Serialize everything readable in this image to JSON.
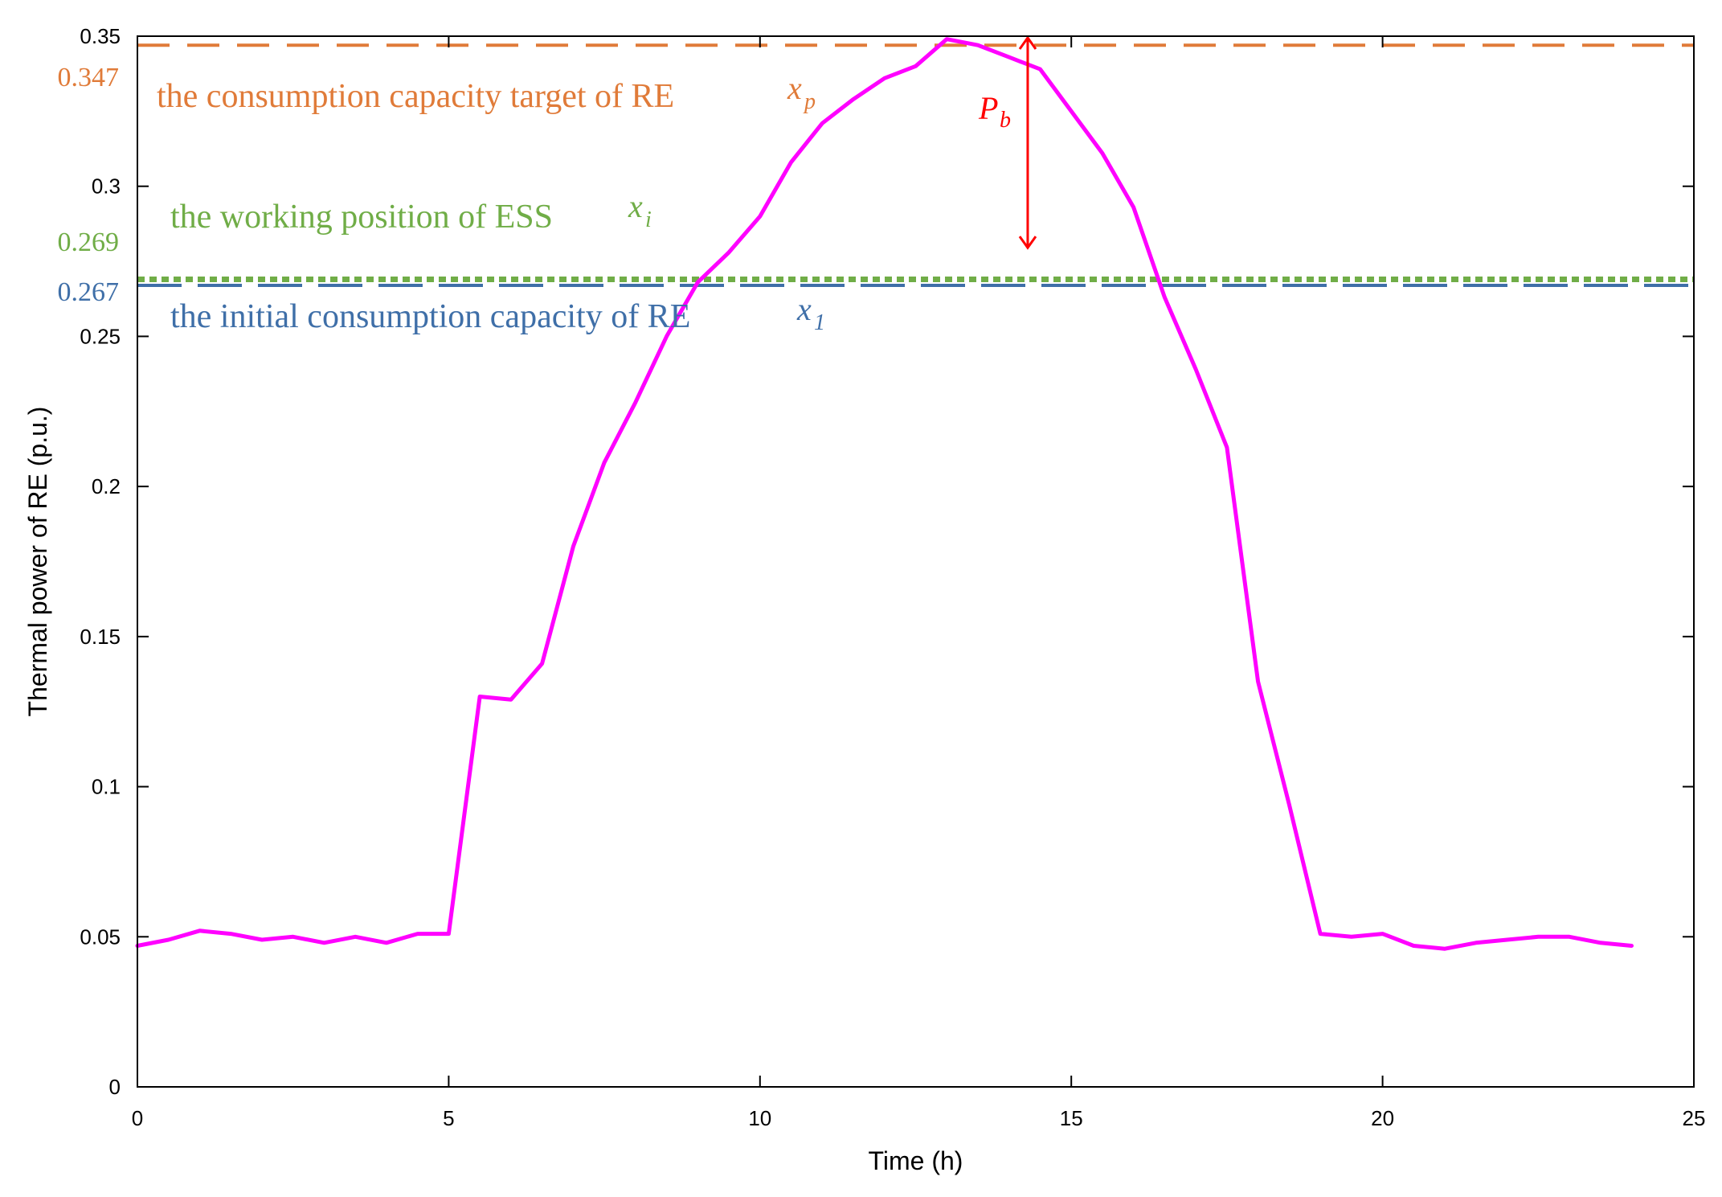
{
  "chart_data": {
    "type": "line",
    "xlabel": "Time (h)",
    "ylabel": "Thermal power  of RE (p.u.)",
    "xlim": [
      0,
      25
    ],
    "ylim": [
      0,
      0.35
    ],
    "xticks": [
      0,
      5,
      10,
      15,
      20,
      25
    ],
    "xtick_labels": [
      "0",
      "5",
      "10",
      "15",
      "20",
      "25"
    ],
    "yticks": [
      0,
      0.05,
      0.1,
      0.15,
      0.2,
      0.25,
      0.3,
      0.35
    ],
    "ytick_labels": [
      "0",
      "0.05",
      "0.1",
      "0.15",
      "0.2",
      "0.25",
      "0.3",
      "0.35"
    ],
    "grid": false,
    "series": [
      {
        "color": "#ff00ff",
        "x": [
          0,
          0.5,
          1,
          1.5,
          2,
          2.5,
          3,
          3.5,
          4,
          4.5,
          5,
          5.5,
          6,
          6.5,
          7,
          7.5,
          8,
          8.5,
          9,
          9.5,
          10,
          10.5,
          11,
          11.5,
          12,
          12.5,
          13,
          13.5,
          14,
          14.5,
          15,
          15.5,
          16,
          16.5,
          17,
          17.5,
          18,
          18.5,
          19,
          19.5,
          20,
          20.5,
          21,
          21.5,
          22,
          22.5,
          23,
          23.5,
          24
        ],
        "y": [
          0.047,
          0.049,
          0.052,
          0.051,
          0.049,
          0.05,
          0.048,
          0.05,
          0.048,
          0.051,
          0.051,
          0.13,
          0.129,
          0.141,
          0.18,
          0.208,
          0.228,
          0.25,
          0.268,
          0.278,
          0.29,
          0.308,
          0.321,
          0.329,
          0.336,
          0.34,
          0.349,
          0.347,
          0.343,
          0.339,
          0.325,
          0.311,
          0.293,
          0.263,
          0.239,
          0.213,
          0.135,
          0.094,
          0.051,
          0.05,
          0.051,
          0.047,
          0.046,
          0.048,
          0.049,
          0.05,
          0.05,
          0.048,
          0.047
        ]
      }
    ],
    "reference_lines": [
      {
        "y": 0.347,
        "value_label": "0.347",
        "label": "the consumption capacity target of RE",
        "symbol": "x",
        "subscript": "p",
        "color": "#e07b39",
        "style": "dashed"
      },
      {
        "y": 0.269,
        "value_label": "0.269",
        "label": "the working position of ESS",
        "symbol": "x",
        "subscript": "i",
        "color": "#70ad47",
        "style": "dotted"
      },
      {
        "y": 0.267,
        "value_label": "0.267",
        "label": "the initial consumption capacity of RE",
        "symbol": "x",
        "subscript": "1",
        "color": "#3f6fa8",
        "style": "long-dashed"
      }
    ],
    "arrow": {
      "x": 14.3,
      "y_from": 0.279,
      "y_to": 0.35,
      "symbol": "P",
      "subscript": "b",
      "color": "#ff0000"
    }
  }
}
